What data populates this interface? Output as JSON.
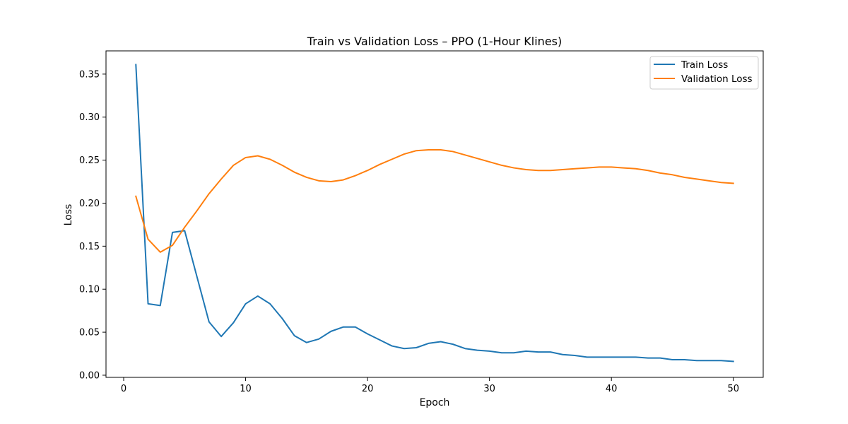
{
  "chart_data": {
    "type": "line",
    "title": "Train vs Validation Loss – PPO (1-Hour Klines)",
    "xlabel": "Epoch",
    "ylabel": "Loss",
    "xlim": [
      -1.45,
      52.45
    ],
    "ylim": [
      -0.0025,
      0.377
    ],
    "xticks": [
      0,
      10,
      20,
      30,
      40,
      50
    ],
    "yticks": [
      0.0,
      0.05,
      0.1,
      0.15,
      0.2,
      0.25,
      0.3,
      0.35
    ],
    "ytick_labels": [
      "0.00",
      "0.05",
      "0.10",
      "0.15",
      "0.20",
      "0.25",
      "0.30",
      "0.35"
    ],
    "grid": false,
    "legend_position": "upper right",
    "x": [
      1,
      2,
      3,
      4,
      5,
      6,
      7,
      8,
      9,
      10,
      11,
      12,
      13,
      14,
      15,
      16,
      17,
      18,
      19,
      20,
      21,
      22,
      23,
      24,
      25,
      26,
      27,
      28,
      29,
      30,
      31,
      32,
      33,
      34,
      35,
      36,
      37,
      38,
      39,
      40,
      41,
      42,
      43,
      44,
      45,
      46,
      47,
      48,
      49,
      50
    ],
    "series": [
      {
        "name": "Train Loss",
        "color": "#1f77b4",
        "values": [
          0.361,
          0.083,
          0.081,
          0.166,
          0.168,
          0.115,
          0.062,
          0.045,
          0.061,
          0.083,
          0.092,
          0.083,
          0.066,
          0.046,
          0.038,
          0.042,
          0.051,
          0.056,
          0.056,
          0.048,
          0.041,
          0.034,
          0.031,
          0.032,
          0.037,
          0.039,
          0.036,
          0.031,
          0.029,
          0.028,
          0.026,
          0.026,
          0.028,
          0.027,
          0.027,
          0.024,
          0.023,
          0.021,
          0.021,
          0.021,
          0.021,
          0.021,
          0.02,
          0.02,
          0.018,
          0.018,
          0.017,
          0.017,
          0.017,
          0.016
        ]
      },
      {
        "name": "Validation Loss",
        "color": "#ff7f0e",
        "values": [
          0.208,
          0.158,
          0.143,
          0.151,
          0.172,
          0.191,
          0.211,
          0.228,
          0.244,
          0.253,
          0.255,
          0.251,
          0.244,
          0.236,
          0.23,
          0.226,
          0.225,
          0.227,
          0.232,
          0.238,
          0.245,
          0.251,
          0.257,
          0.261,
          0.262,
          0.262,
          0.26,
          0.256,
          0.252,
          0.248,
          0.244,
          0.241,
          0.239,
          0.238,
          0.238,
          0.239,
          0.24,
          0.241,
          0.242,
          0.242,
          0.241,
          0.24,
          0.238,
          0.235,
          0.233,
          0.23,
          0.228,
          0.226,
          0.224,
          0.223
        ]
      }
    ]
  }
}
